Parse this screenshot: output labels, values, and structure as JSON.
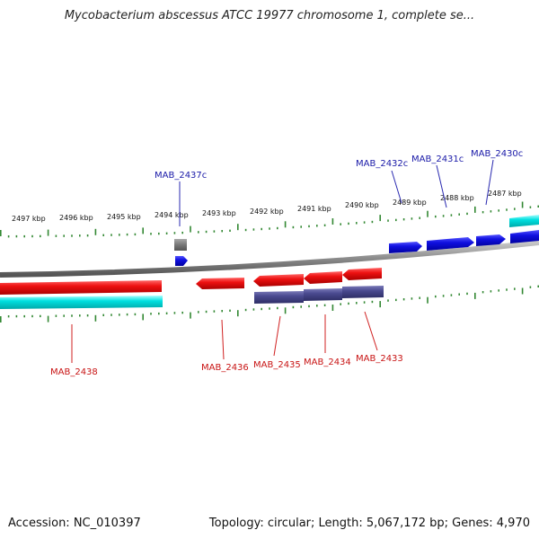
{
  "title": "Mycobacterium abscessus ATCC 19977 chromosome 1, complete se...",
  "footer": {
    "accession": "Accession: NC_010397",
    "summary": "Topology: circular; Length: 5,067,172 bp; Genes: 4,970"
  },
  "colors": {
    "forward_gene": "#1010e0",
    "reverse_gene": "#e01010",
    "forward_cds": "#00dddd",
    "reverse_cds": "#444488",
    "pseudo_gene": "#777777",
    "tick": "#338833",
    "backbone": "#888888",
    "forward_label": "#1a1aa8",
    "reverse_label": "#c81414"
  },
  "kbp_ticks": [
    "2497 kbp",
    "2496 kbp",
    "2495 kbp",
    "2494 kbp",
    "2493 kbp",
    "2492 kbp",
    "2491 kbp",
    "2490 kbp",
    "2489 kbp",
    "2488 kbp",
    "2487 kbp"
  ],
  "forward_labels": [
    "MAB_2437c",
    "MAB_2432c",
    "MAB_2431c",
    "MAB_2430c"
  ],
  "reverse_labels": [
    "MAB_2438",
    "MAB_2436",
    "MAB_2435",
    "MAB_2434",
    "MAB_2433"
  ]
}
